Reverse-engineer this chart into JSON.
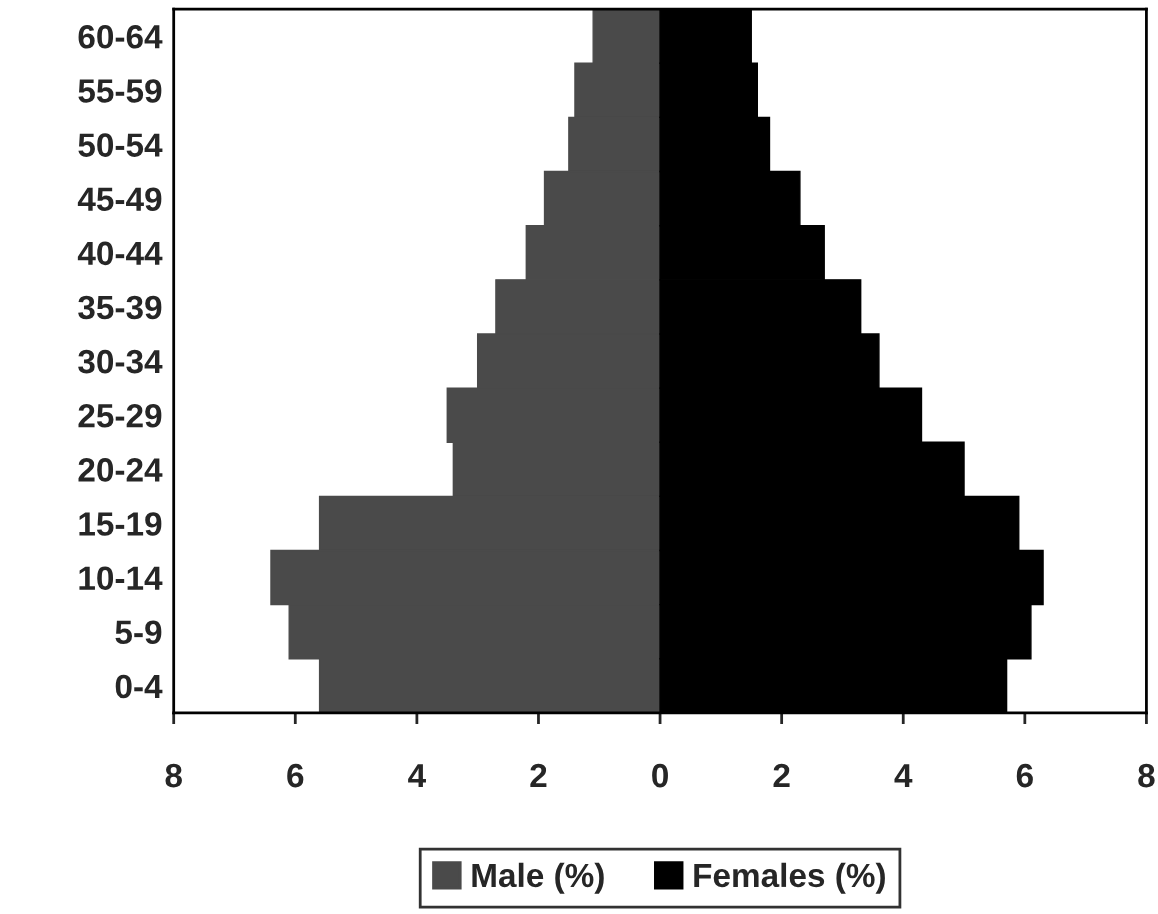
{
  "chart_data": {
    "type": "bar",
    "orientation": "horizontal",
    "stacked": true,
    "categories": [
      "60-64",
      "55-59",
      "50-54",
      "45-49",
      "40-44",
      "35-39",
      "30-34",
      "25-29",
      "20-24",
      "15-19",
      "10-14",
      "5-9",
      "0-4"
    ],
    "series": [
      {
        "name": "Male (%)",
        "color": "#4a4a4a",
        "values": [
          -1.1,
          -1.4,
          -1.5,
          -1.9,
          -2.2,
          -2.7,
          -3.0,
          -3.5,
          -3.4,
          -5.6,
          -6.4,
          -6.1,
          -5.6
        ]
      },
      {
        "name": "Females (%)",
        "color": "#000000",
        "values": [
          1.5,
          1.6,
          1.8,
          2.3,
          2.7,
          3.3,
          3.6,
          4.3,
          5.0,
          5.9,
          6.3,
          6.1,
          5.7
        ]
      }
    ],
    "xlim": [
      -8,
      8
    ],
    "xticks": [
      {
        "value": -8,
        "label": "8"
      },
      {
        "value": -6,
        "label": "6"
      },
      {
        "value": -4,
        "label": "4"
      },
      {
        "value": -2,
        "label": "2"
      },
      0,
      2,
      4,
      6,
      8
    ],
    "grid": false,
    "legend": "bottom"
  }
}
